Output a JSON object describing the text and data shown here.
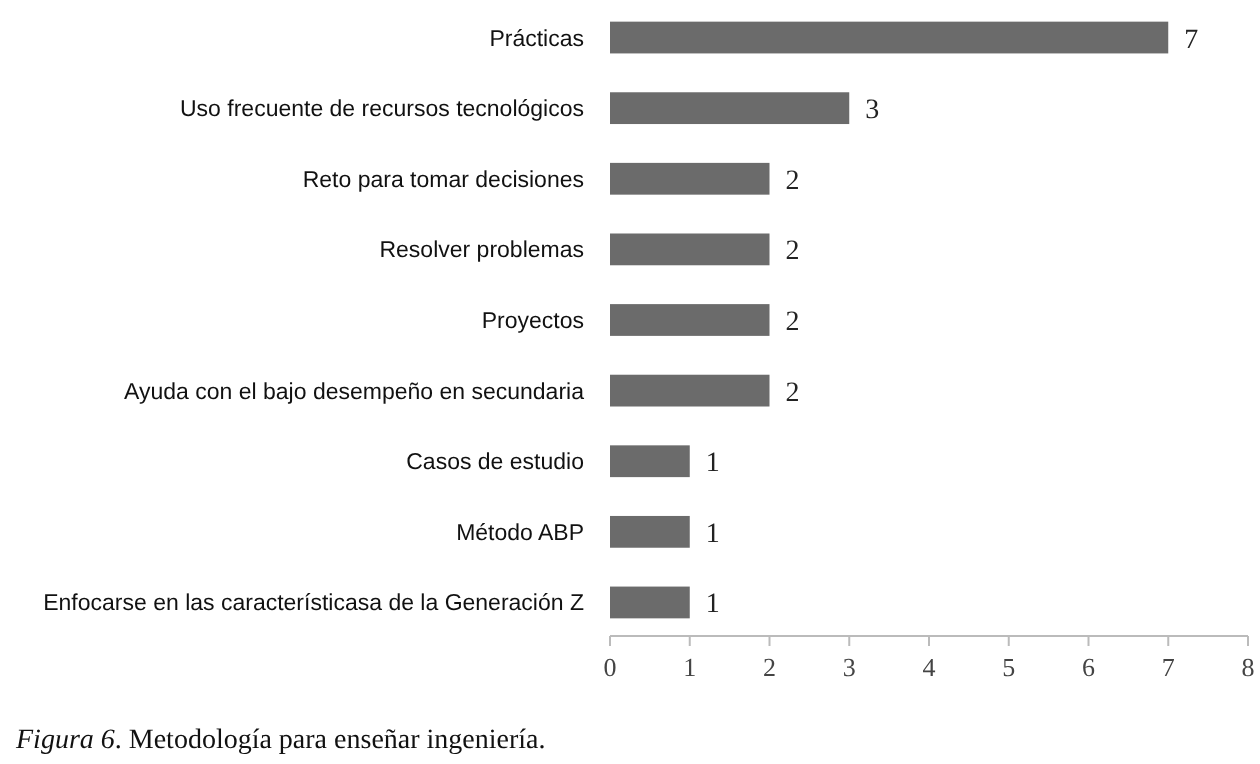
{
  "chart_data": {
    "type": "bar",
    "orientation": "horizontal",
    "categories": [
      "Prácticas",
      "Uso frecuente de recursos tecnológicos",
      "Reto para tomar decisiones",
      "Resolver problemas",
      "Proyectos",
      "Ayuda con el bajo desempeño en secundaria",
      "Casos de estudio",
      "Método ABP",
      "Enfocarse en las característicasa de la Generación Z"
    ],
    "values": [
      7,
      3,
      2,
      2,
      2,
      2,
      1,
      1,
      1
    ],
    "color": "#6b6b6b",
    "xlim": [
      0,
      8
    ],
    "xticks": [
      0,
      1,
      2,
      3,
      4,
      5,
      6,
      7,
      8
    ],
    "data_labels": true,
    "grid": false,
    "annotations": [
      "Figura 6. Metodología para enseñar ingeniería."
    ]
  }
}
